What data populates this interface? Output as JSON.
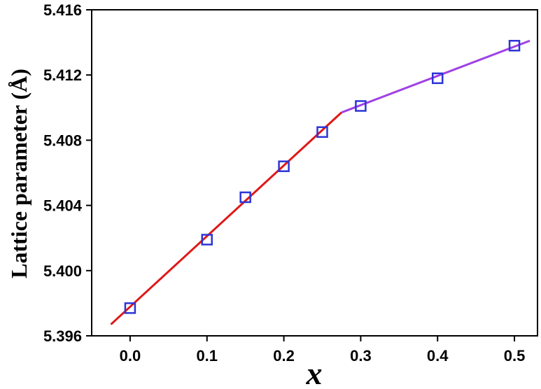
{
  "chart_data": {
    "type": "scatter",
    "xlabel": "x",
    "ylabel": "Lattice parameter (Å)",
    "xlim": [
      -0.05,
      0.53
    ],
    "ylim": [
      5.396,
      5.416
    ],
    "xticks": [
      {
        "value": 0.0,
        "label": "0.0"
      },
      {
        "value": 0.1,
        "label": "0.1"
      },
      {
        "value": 0.2,
        "label": "0.2"
      },
      {
        "value": 0.3,
        "label": "0.3"
      },
      {
        "value": 0.4,
        "label": "0.4"
      },
      {
        "value": 0.5,
        "label": "0.5"
      }
    ],
    "yticks": [
      {
        "value": 5.396,
        "label": "5.396"
      },
      {
        "value": 5.4,
        "label": "5.400"
      },
      {
        "value": 5.404,
        "label": "5.404"
      },
      {
        "value": 5.408,
        "label": "5.408"
      },
      {
        "value": 5.412,
        "label": "5.412"
      },
      {
        "value": 5.416,
        "label": "5.416"
      }
    ],
    "points": {
      "marker": "open-square",
      "color": "#2b35d6",
      "x": [
        0.0,
        0.1,
        0.15,
        0.2,
        0.25,
        0.3,
        0.4,
        0.5
      ],
      "y": [
        5.3977,
        5.4019,
        5.4045,
        5.4064,
        5.4085,
        5.4101,
        5.4118,
        5.4138
      ]
    },
    "fit_lines": [
      {
        "color": "#e01818",
        "x": [
          -0.025,
          0.275
        ],
        "y": [
          5.3967,
          5.4097
        ]
      },
      {
        "color": "#a040e6",
        "x": [
          0.275,
          0.52
        ],
        "y": [
          5.4097,
          5.4141
        ]
      }
    ],
    "grid": false,
    "legend": "none"
  }
}
